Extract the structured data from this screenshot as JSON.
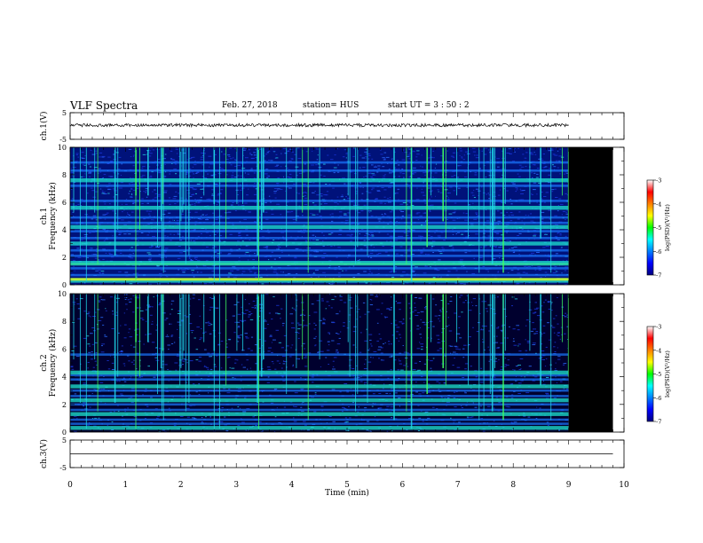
{
  "header": {
    "title": "VLF Spectra",
    "date": "Feb. 27, 2018",
    "station": "station= HUS",
    "start": "start  UT  =   3  : 50 : 2"
  },
  "chart_data": [
    {
      "type": "line",
      "id": "ch1-waveform",
      "ylabel": "ch.1(V)",
      "ylim": [
        -5,
        5
      ],
      "yticks": [
        "5",
        "-5"
      ],
      "x_range": [
        0,
        10
      ],
      "data_end_min": 9.0,
      "trace_level": 0.3,
      "trace_amplitude": 0.6
    },
    {
      "type": "heatmap",
      "id": "ch1-spectrogram",
      "ylabel": "ch.1 Frequency (kHz)",
      "ylabel_lines": [
        "ch.1",
        "Frequency (kHz)"
      ],
      "ylim": [
        0,
        10
      ],
      "yticks": [
        "0",
        "2",
        "4",
        "6",
        "8",
        "10"
      ],
      "x_range": [
        0,
        10
      ],
      "data_end_min": 9.0,
      "bands_khz": [
        0.3,
        0.7,
        1.2,
        1.6,
        2.1,
        2.5,
        3.0,
        3.4,
        3.9,
        4.2,
        4.5,
        4.9,
        5.6,
        6.1,
        7.2,
        7.6,
        8.3,
        8.9
      ],
      "colorbar": {
        "label": "log(PSD)(V²/Hz)",
        "ticks": [
          "-3",
          "-4",
          "-5",
          "-6",
          "-7"
        ],
        "range": [
          -7,
          -3
        ]
      }
    },
    {
      "type": "heatmap",
      "id": "ch2-spectrogram",
      "ylabel": "ch.2 Frequency (kHz)",
      "ylabel_lines": [
        "ch.2",
        "Frequency (kHz)"
      ],
      "ylim": [
        0,
        10
      ],
      "yticks": [
        "0",
        "2",
        "4",
        "6",
        "8",
        "10"
      ],
      "x_range": [
        0,
        10
      ],
      "data_end_min": 9.0,
      "bands_khz": [
        0.3,
        0.6,
        0.9,
        1.3,
        1.6,
        2.0,
        2.3,
        2.6,
        3.0,
        3.3,
        3.8,
        4.1,
        4.3,
        5.6
      ],
      "colorbar": {
        "label": "log(PSD)(V²/Hz)",
        "ticks": [
          "-3",
          "-4",
          "-5",
          "-6",
          "-7"
        ],
        "range": [
          -7,
          -3
        ]
      }
    },
    {
      "type": "line",
      "id": "ch3-waveform",
      "ylabel": "ch.3(V)",
      "ylim": [
        -5,
        5
      ],
      "yticks": [
        "5",
        "-5"
      ],
      "x_range": [
        0,
        10
      ],
      "data_end_min": 9.8,
      "trace_level": 0.0,
      "trace_amplitude": 0.0
    }
  ],
  "xaxis": {
    "label": "Time  (min)",
    "ticks": [
      "0",
      "1",
      "2",
      "3",
      "4",
      "5",
      "6",
      "7",
      "8",
      "9",
      "10"
    ],
    "range": [
      0,
      10
    ]
  },
  "colors": {
    "no_data": "#000000",
    "colormap": [
      "#000080",
      "#0000ff",
      "#0080ff",
      "#00ffff",
      "#00ff00",
      "#ffff00",
      "#ff8000",
      "#ff0000",
      "#ffffff"
    ]
  }
}
